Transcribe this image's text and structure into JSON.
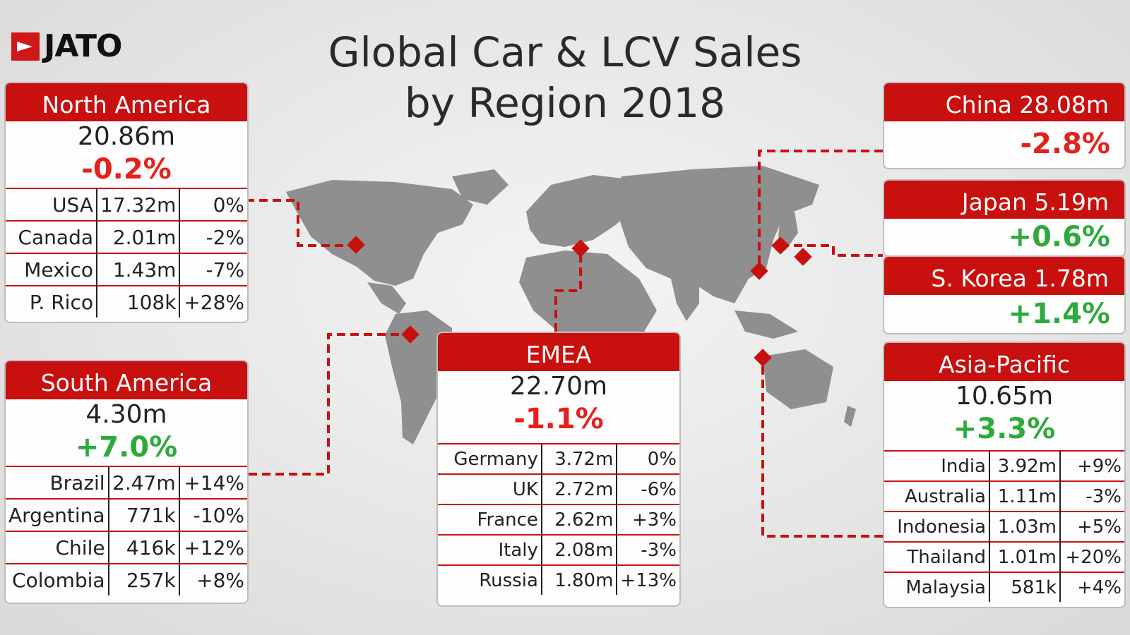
{
  "logo": {
    "text": "JATO"
  },
  "title": {
    "line1": "Global Car & LCV Sales",
    "line2": "by Region 2018"
  },
  "colors": {
    "header_red": "#c8100f",
    "negative": "#e4211c",
    "positive": "#2eaa3c",
    "map_gray": "#8f8f8f"
  },
  "north_america": {
    "name": "North America",
    "total": "20.86m",
    "change": "-0.2%",
    "rows": [
      {
        "country": "USA",
        "sales": "17.32m",
        "change": "0%"
      },
      {
        "country": "Canada",
        "sales": "2.01m",
        "change": "-2%"
      },
      {
        "country": "Mexico",
        "sales": "1.43m",
        "change": "-7%"
      },
      {
        "country": "P. Rico",
        "sales": "108k",
        "change": "+28%"
      }
    ]
  },
  "south_america": {
    "name": "South America",
    "total": "4.30m",
    "change": "+7.0%",
    "rows": [
      {
        "country": "Brazil",
        "sales": "2.47m",
        "change": "+14%"
      },
      {
        "country": "Argentina",
        "sales": "771k",
        "change": "-10%"
      },
      {
        "country": "Chile",
        "sales": "416k",
        "change": "+12%"
      },
      {
        "country": "Colombia",
        "sales": "257k",
        "change": "+8%"
      }
    ]
  },
  "emea": {
    "name": "EMEA",
    "total": "22.70m",
    "change": "-1.1%",
    "rows": [
      {
        "country": "Germany",
        "sales": "3.72m",
        "change": "0%"
      },
      {
        "country": "UK",
        "sales": "2.72m",
        "change": "-6%"
      },
      {
        "country": "France",
        "sales": "2.62m",
        "change": "+3%"
      },
      {
        "country": "Italy",
        "sales": "2.08m",
        "change": "-3%"
      },
      {
        "country": "Russia",
        "sales": "1.80m",
        "change": "+13%"
      }
    ]
  },
  "china": {
    "label": "China 28.08m",
    "change": "-2.8%"
  },
  "japan": {
    "label": "Japan 5.19m",
    "change": "+0.6%"
  },
  "korea": {
    "label": "S. Korea 1.78m",
    "change": "+1.4%"
  },
  "asia_pacific": {
    "name": "Asia-Pacific",
    "total": "10.65m",
    "change": "+3.3%",
    "rows": [
      {
        "country": "India",
        "sales": "3.92m",
        "change": "+9%"
      },
      {
        "country": "Australia",
        "sales": "1.11m",
        "change": "-3%"
      },
      {
        "country": "Indonesia",
        "sales": "1.03m",
        "change": "+5%"
      },
      {
        "country": "Thailand",
        "sales": "1.01m",
        "change": "+20%"
      },
      {
        "country": "Malaysia",
        "sales": "581k",
        "change": "+4%"
      }
    ]
  }
}
